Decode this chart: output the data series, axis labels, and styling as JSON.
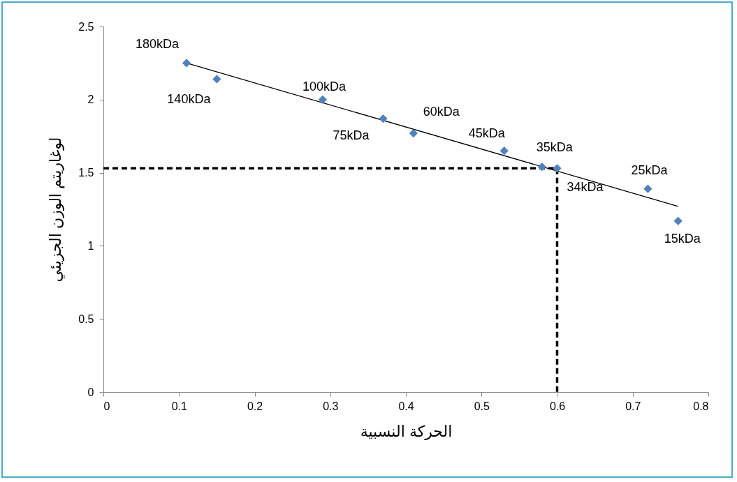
{
  "chart_data": {
    "type": "scatter",
    "xlabel": "الحركة النسبية",
    "ylabel": "لوغاريتم الوزن الجزيئي",
    "xlim": [
      0,
      0.8
    ],
    "xticks": [
      0,
      0.1,
      0.2,
      0.3,
      0.4,
      0.5,
      0.6,
      0.7,
      0.8
    ],
    "ylim": [
      0,
      2.5
    ],
    "yticks": [
      0,
      0.5,
      1,
      1.5,
      2,
      2.5
    ],
    "grid": false,
    "series": [
      {
        "marker": "diamond",
        "color": "#4f81bd",
        "x": [
          0.11,
          0.15,
          0.29,
          0.37,
          0.41,
          0.53,
          0.58,
          0.6,
          0.72,
          0.76
        ],
        "values": [
          2.25,
          2.14,
          2.0,
          1.87,
          1.77,
          1.65,
          1.54,
          1.53,
          1.39,
          1.17
        ]
      },
      {
        "type": "line",
        "marker": "none",
        "color": "#000000",
        "line_style": "solid",
        "x": [
          0.11,
          0.76
        ],
        "values": [
          2.25,
          1.27
        ]
      },
      {
        "type": "line",
        "marker": "none",
        "color": "#000000",
        "line_style": "dashed",
        "x": [
          0,
          0.6,
          0.6
        ],
        "values": [
          1.53,
          1.53,
          0
        ]
      }
    ],
    "annotations": [
      {
        "text": "180kDa",
        "x": 0.11,
        "y": 2.25
      },
      {
        "text": "140kDa",
        "x": 0.15,
        "y": 2.14
      },
      {
        "text": "100kDa",
        "x": 0.29,
        "y": 2.0
      },
      {
        "text": "75kDa",
        "x": 0.37,
        "y": 1.87
      },
      {
        "text": "60kDa",
        "x": 0.41,
        "y": 1.77
      },
      {
        "text": "45kDa",
        "x": 0.53,
        "y": 1.65
      },
      {
        "text": "35kDa",
        "x": 0.58,
        "y": 1.54
      },
      {
        "text": "34kDa",
        "x": 0.6,
        "y": 1.53
      },
      {
        "text": "25kDa",
        "x": 0.72,
        "y": 1.39
      },
      {
        "text": "15kDa",
        "x": 0.76,
        "y": 1.17
      }
    ]
  }
}
